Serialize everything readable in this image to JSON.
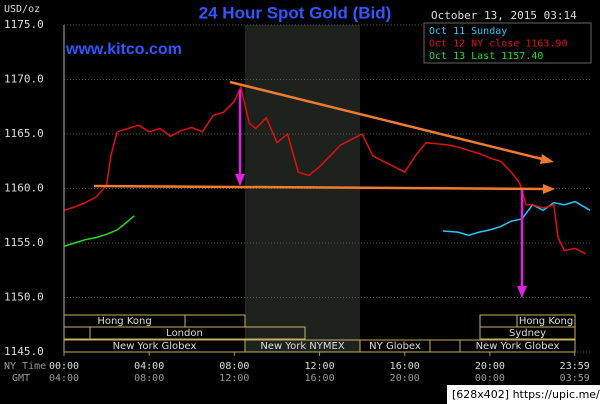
{
  "chart_data": {
    "type": "line",
    "title": "24 Hour Spot Gold (Bid)",
    "y_unit": "USD/oz",
    "timestamp": "October 13, 2015 03:14",
    "source": "www.kitco.com",
    "x_label": "NY Time",
    "x2_label": "GMT",
    "footer": "[628x402] https://upic.me/",
    "xlim": [
      0,
      24.7
    ],
    "ylim": [
      1145,
      1175
    ],
    "grid": true,
    "yticks": [
      {
        "value": 1145,
        "label": "1145.0"
      },
      {
        "value": 1150,
        "label": "1150.0"
      },
      {
        "value": 1155,
        "label": "1155.0"
      },
      {
        "value": 1160,
        "label": "1160.0"
      },
      {
        "value": 1165,
        "label": "1165.0"
      },
      {
        "value": 1170,
        "label": "1170.0"
      },
      {
        "value": 1175,
        "label": "1175.0"
      }
    ],
    "xticks": [
      {
        "value": 0,
        "label": "00:00"
      },
      {
        "value": 4,
        "label": "04:00"
      },
      {
        "value": 8,
        "label": "08:00"
      },
      {
        "value": 12,
        "label": "12:00"
      },
      {
        "value": 16,
        "label": "16:00"
      },
      {
        "value": 20,
        "label": "20:00"
      },
      {
        "value": 23.983,
        "label": "23:59"
      }
    ],
    "x2ticks": [
      {
        "value": 0,
        "label": "04:00"
      },
      {
        "value": 4,
        "label": "08:00"
      },
      {
        "value": 8,
        "label": "12:00"
      },
      {
        "value": 12,
        "label": "16:00"
      },
      {
        "value": 16,
        "label": "20:00"
      },
      {
        "value": 20,
        "label": "00:00"
      },
      {
        "value": 23.983,
        "label": "03:59"
      }
    ],
    "sessions": [
      "Hong Kong",
      "London",
      "New York Globex",
      "New York NYMEX",
      "NY Globex",
      "Sydney",
      "Hong Kong",
      "New York Globex"
    ],
    "series": [
      {
        "name": "Oct 11 Sunday",
        "color": "#1ec8ff",
        "x": [
          17.8,
          18.5,
          19,
          19.5,
          20,
          20.5,
          21,
          21.5,
          22,
          22.5,
          23,
          23.5,
          24,
          24.7
        ],
        "values": [
          1156.1,
          1156.0,
          1155.7,
          1156.0,
          1156.2,
          1156.5,
          1157.0,
          1157.2,
          1158.5,
          1158.0,
          1158.7,
          1158.5,
          1158.8,
          1158.0
        ]
      },
      {
        "name": "Oct 12 NY close 1163.90",
        "color": "#e01010",
        "x": [
          0,
          0.5,
          1,
          1.5,
          2,
          2.2,
          2.5,
          3,
          3.5,
          4,
          4.5,
          5,
          5.5,
          6,
          6.5,
          7,
          7.5,
          8,
          8.3,
          8.7,
          9,
          9.5,
          10,
          10.5,
          11,
          11.5,
          12,
          12.5,
          13,
          13.5,
          14,
          14.5,
          15,
          15.5,
          16,
          16.5,
          17,
          17.5,
          18,
          18.5,
          19,
          19.5,
          20,
          20.5,
          21,
          21.4,
          21.7,
          22,
          22.5,
          23,
          23.2,
          23.5,
          24,
          24.5
        ],
        "values": [
          1158.0,
          1158.3,
          1158.7,
          1159.2,
          1160.3,
          1163.0,
          1165.2,
          1165.5,
          1165.8,
          1165.2,
          1165.5,
          1164.8,
          1165.3,
          1165.6,
          1165.2,
          1166.7,
          1167.0,
          1168.0,
          1169.3,
          1166.0,
          1165.5,
          1166.5,
          1164.2,
          1165.0,
          1161.5,
          1161.2,
          1162.0,
          1163.0,
          1164.0,
          1164.5,
          1165.0,
          1163.0,
          1162.5,
          1162.0,
          1161.5,
          1163.0,
          1164.2,
          1164.1,
          1164.0,
          1163.8,
          1163.5,
          1163.2,
          1162.8,
          1162.5,
          1161.5,
          1160.5,
          1158.5,
          1158.5,
          1158.2,
          1158.5,
          1155.5,
          1154.3,
          1154.5,
          1154.0
        ]
      },
      {
        "name": "Oct 13 Last 1157.40",
        "color": "#22dd22",
        "x": [
          0,
          0.5,
          1,
          1.5,
          2,
          2.5,
          3,
          3.3
        ],
        "values": [
          1154.7,
          1155.0,
          1155.3,
          1155.5,
          1155.8,
          1156.2,
          1157.0,
          1157.5
        ]
      }
    ]
  }
}
